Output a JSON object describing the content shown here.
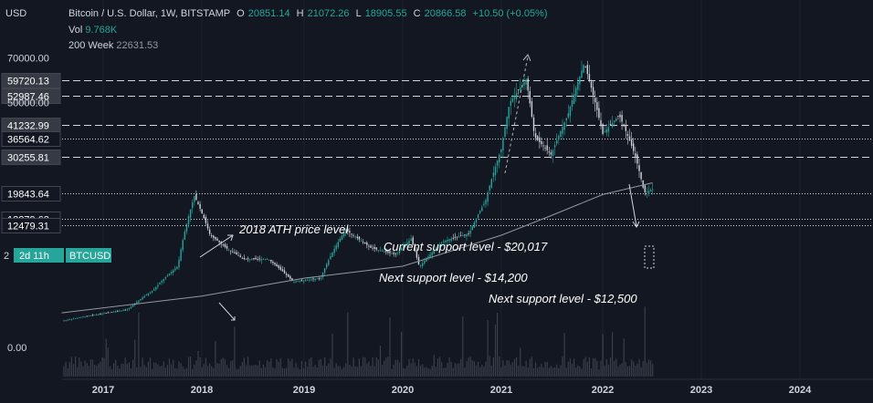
{
  "header": {
    "currency": "USD",
    "symbol": "Bitcoin / U.S. Dollar, 1W, BITSTAMP",
    "o_label": "O",
    "o": "20851.14",
    "h_label": "H",
    "h": "21072.26",
    "l_label": "L",
    "l": "18905.55",
    "c_label": "C",
    "c": "20866.58",
    "change": "+10.50 (+0.05%)"
  },
  "indicators": {
    "vol_label": "Vol",
    "vol_value": "9.768K",
    "ma_label": "200 Week",
    "ma_value": "22631.53"
  },
  "countdown": "2d 11h",
  "ticker_badge": "BTCUSD",
  "colors": {
    "background": "#131722",
    "up": "#26a69a",
    "down": "#d1d4dc",
    "badge": "#26a69a",
    "ma": "#9598a1"
  },
  "chart_data": {
    "type": "candlestick",
    "x_tick_labels": [
      "2017",
      "2018",
      "2019",
      "2020",
      "2021",
      "2022",
      "2023",
      "2024"
    ],
    "y_tick_labels": [
      "70000.00",
      "50000.00",
      "0.00"
    ],
    "y_ticks": [
      70000,
      50000,
      0
    ],
    "level_labels": [
      "59720.13",
      "52987.46",
      "41232.99",
      "36564.62",
      "30255.81",
      "19843.64",
      "13879.63",
      "12479.31"
    ],
    "levels": [
      59720.13,
      52987.46,
      41232.99,
      36564.62,
      30255.81,
      19843.64,
      13879.63,
      12479.31
    ],
    "partial_left_label": "2",
    "annotations": [
      "2018 ATH price level",
      "Current support level - $20,017",
      "Next support level - $14,200",
      "Next support level - $12,500"
    ],
    "price_series": [
      {
        "date": "2016-08",
        "close": 580
      },
      {
        "date": "2017-01",
        "close": 970
      },
      {
        "date": "2017-04",
        "close": 1200
      },
      {
        "date": "2017-07",
        "close": 2700
      },
      {
        "date": "2017-10",
        "close": 5500
      },
      {
        "date": "2017-12",
        "close": 19200
      },
      {
        "date": "2018-02",
        "close": 10500
      },
      {
        "date": "2018-04",
        "close": 8200
      },
      {
        "date": "2018-06",
        "close": 6500
      },
      {
        "date": "2018-09",
        "close": 6500
      },
      {
        "date": "2018-12",
        "close": 3600
      },
      {
        "date": "2019-03",
        "close": 4000
      },
      {
        "date": "2019-06",
        "close": 11500
      },
      {
        "date": "2019-09",
        "close": 8300
      },
      {
        "date": "2019-12",
        "close": 7200
      },
      {
        "date": "2020-02",
        "close": 9800
      },
      {
        "date": "2020-03",
        "close": 5400
      },
      {
        "date": "2020-06",
        "close": 9500
      },
      {
        "date": "2020-09",
        "close": 10800
      },
      {
        "date": "2020-11",
        "close": 18000
      },
      {
        "date": "2021-01",
        "close": 33000
      },
      {
        "date": "2021-02",
        "close": 50000
      },
      {
        "date": "2021-04",
        "close": 60000
      },
      {
        "date": "2021-05",
        "close": 37000
      },
      {
        "date": "2021-07",
        "close": 31000
      },
      {
        "date": "2021-09",
        "close": 45000
      },
      {
        "date": "2021-11",
        "close": 67500
      },
      {
        "date": "2022-01",
        "close": 38000
      },
      {
        "date": "2022-03",
        "close": 45000
      },
      {
        "date": "2022-05",
        "close": 30000
      },
      {
        "date": "2022-06",
        "close": 20000
      },
      {
        "date": "2022-07",
        "close": 20866.58
      }
    ],
    "ma200_series": [
      {
        "date": "2016-08",
        "value": 1000
      },
      {
        "date": "2018-01",
        "value": 2200
      },
      {
        "date": "2019-01",
        "value": 4000
      },
      {
        "date": "2020-01",
        "value": 5500
      },
      {
        "date": "2021-01",
        "value": 10500
      },
      {
        "date": "2021-07",
        "value": 14500
      },
      {
        "date": "2022-01",
        "value": 19500
      },
      {
        "date": "2022-07",
        "value": 22631.53
      }
    ]
  }
}
